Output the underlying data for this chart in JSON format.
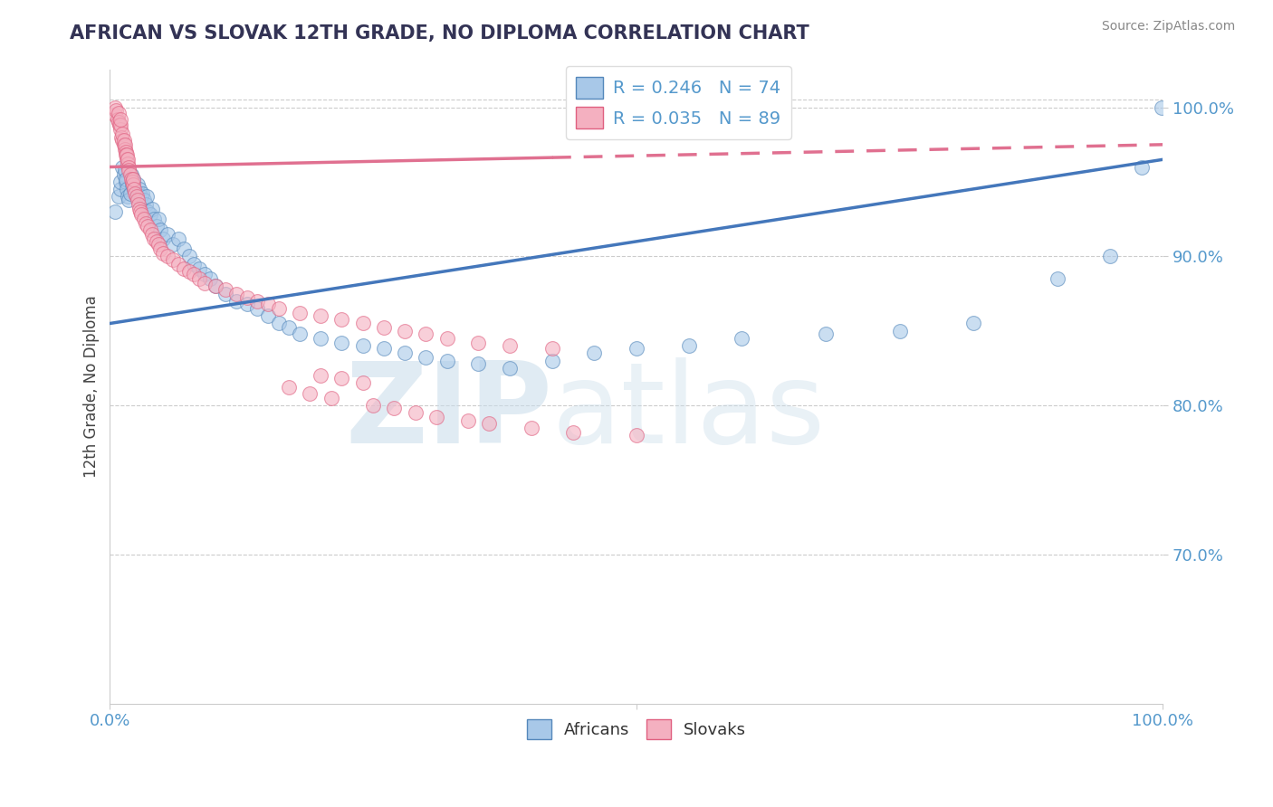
{
  "title": "AFRICAN VS SLOVAK 12TH GRADE, NO DIPLOMA CORRELATION CHART",
  "source": "Source: ZipAtlas.com",
  "ylabel": "12th Grade, No Diploma",
  "x_range": [
    0.0,
    1.0
  ],
  "y_range": [
    0.6,
    1.025
  ],
  "african_R": 0.246,
  "african_N": 74,
  "slovak_R": 0.035,
  "slovak_N": 89,
  "african_color": "#a8c8e8",
  "slovak_color": "#f4b0c0",
  "african_edge_color": "#5588bb",
  "slovak_edge_color": "#e06080",
  "african_line_color": "#4477bb",
  "slovak_line_color": "#e07090",
  "watermark_color": "#dde8f0",
  "grid_color": "#cccccc",
  "tick_label_color": "#5599cc",
  "title_color": "#333355",
  "source_color": "#888888",
  "ylabel_color": "#444444",
  "y_ticks": [
    0.7,
    0.8,
    0.9,
    1.0
  ],
  "y_tick_labels": [
    "70.0%",
    "80.0%",
    "90.0%",
    "100.0%"
  ],
  "af_line_x0": 0.0,
  "af_line_y0": 0.855,
  "af_line_x1": 1.0,
  "af_line_y1": 0.965,
  "sk_line_x0": 0.0,
  "sk_line_y0": 0.96,
  "sk_line_x1": 1.0,
  "sk_line_y1": 0.975,
  "africans_x": [
    0.005,
    0.008,
    0.01,
    0.01,
    0.012,
    0.013,
    0.014,
    0.015,
    0.015,
    0.016,
    0.017,
    0.018,
    0.019,
    0.02,
    0.021,
    0.022,
    0.022,
    0.023,
    0.025,
    0.026,
    0.027,
    0.028,
    0.03,
    0.031,
    0.032,
    0.034,
    0.035,
    0.036,
    0.038,
    0.04,
    0.042,
    0.044,
    0.046,
    0.048,
    0.05,
    0.055,
    0.06,
    0.065,
    0.07,
    0.075,
    0.08,
    0.085,
    0.09,
    0.095,
    0.1,
    0.11,
    0.12,
    0.13,
    0.14,
    0.15,
    0.16,
    0.17,
    0.18,
    0.2,
    0.22,
    0.24,
    0.26,
    0.28,
    0.3,
    0.32,
    0.35,
    0.38,
    0.42,
    0.46,
    0.5,
    0.55,
    0.6,
    0.68,
    0.75,
    0.82,
    0.9,
    0.95,
    0.98,
    0.999
  ],
  "africans_y": [
    0.93,
    0.94,
    0.945,
    0.95,
    0.96,
    0.955,
    0.958,
    0.95,
    0.952,
    0.945,
    0.94,
    0.938,
    0.942,
    0.955,
    0.948,
    0.95,
    0.952,
    0.945,
    0.94,
    0.948,
    0.942,
    0.945,
    0.94,
    0.942,
    0.938,
    0.935,
    0.94,
    0.93,
    0.928,
    0.932,
    0.925,
    0.92,
    0.925,
    0.918,
    0.912,
    0.915,
    0.908,
    0.912,
    0.905,
    0.9,
    0.895,
    0.892,
    0.888,
    0.885,
    0.88,
    0.875,
    0.87,
    0.868,
    0.865,
    0.86,
    0.855,
    0.852,
    0.848,
    0.845,
    0.842,
    0.84,
    0.838,
    0.835,
    0.832,
    0.83,
    0.828,
    0.825,
    0.83,
    0.835,
    0.838,
    0.84,
    0.845,
    0.848,
    0.85,
    0.855,
    0.885,
    0.9,
    0.96,
    1.0
  ],
  "slovaks_x": [
    0.005,
    0.005,
    0.006,
    0.007,
    0.008,
    0.008,
    0.009,
    0.01,
    0.01,
    0.01,
    0.011,
    0.012,
    0.012,
    0.013,
    0.013,
    0.014,
    0.014,
    0.015,
    0.015,
    0.016,
    0.016,
    0.017,
    0.017,
    0.018,
    0.018,
    0.019,
    0.02,
    0.021,
    0.022,
    0.022,
    0.023,
    0.024,
    0.025,
    0.026,
    0.027,
    0.028,
    0.029,
    0.03,
    0.032,
    0.034,
    0.036,
    0.038,
    0.04,
    0.042,
    0.044,
    0.046,
    0.048,
    0.05,
    0.055,
    0.06,
    0.065,
    0.07,
    0.075,
    0.08,
    0.085,
    0.09,
    0.1,
    0.11,
    0.12,
    0.13,
    0.14,
    0.15,
    0.16,
    0.18,
    0.2,
    0.22,
    0.24,
    0.26,
    0.28,
    0.3,
    0.32,
    0.35,
    0.38,
    0.42,
    0.2,
    0.22,
    0.24,
    0.17,
    0.19,
    0.21,
    0.25,
    0.27,
    0.29,
    0.31,
    0.34,
    0.36,
    0.4,
    0.44,
    0.5
  ],
  "slovaks_y": [
    0.995,
    1.0,
    0.998,
    0.992,
    0.996,
    0.99,
    0.988,
    0.985,
    0.988,
    0.992,
    0.98,
    0.978,
    0.982,
    0.975,
    0.978,
    0.972,
    0.975,
    0.97,
    0.968,
    0.965,
    0.968,
    0.962,
    0.965,
    0.96,
    0.958,
    0.955,
    0.952,
    0.95,
    0.948,
    0.952,
    0.945,
    0.942,
    0.94,
    0.938,
    0.935,
    0.932,
    0.93,
    0.928,
    0.925,
    0.922,
    0.92,
    0.918,
    0.915,
    0.912,
    0.91,
    0.908,
    0.905,
    0.902,
    0.9,
    0.898,
    0.895,
    0.892,
    0.89,
    0.888,
    0.885,
    0.882,
    0.88,
    0.878,
    0.875,
    0.872,
    0.87,
    0.868,
    0.865,
    0.862,
    0.86,
    0.858,
    0.855,
    0.852,
    0.85,
    0.848,
    0.845,
    0.842,
    0.84,
    0.838,
    0.82,
    0.818,
    0.815,
    0.812,
    0.808,
    0.805,
    0.8,
    0.798,
    0.795,
    0.792,
    0.79,
    0.788,
    0.785,
    0.782,
    0.78
  ]
}
